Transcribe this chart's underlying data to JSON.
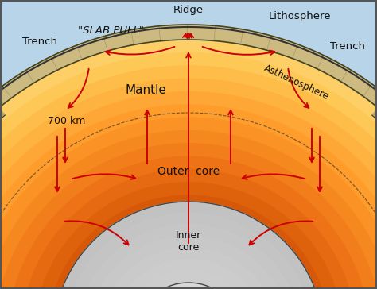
{
  "bg_color": "#b8d4e8",
  "border_color": "#555555",
  "arrow_red": "#cc0000",
  "arrow_black": "#111111",
  "text_color": "#111111",
  "lithosphere_color": "#c8b882",
  "labels": {
    "ridge": "Ridge",
    "lithosphere": "Lithosphere",
    "trench_left": "Trench",
    "trench_right": "Trench",
    "slab_pull": "\"SLAB PULL\"",
    "asthenosphere": "Asthenosphere",
    "mantle": "Mantle",
    "depth": "700 km",
    "outer_core": "Outer  core",
    "inner_core": "Inner\ncore"
  },
  "figsize": [
    4.74,
    3.64
  ],
  "dpi": 100
}
